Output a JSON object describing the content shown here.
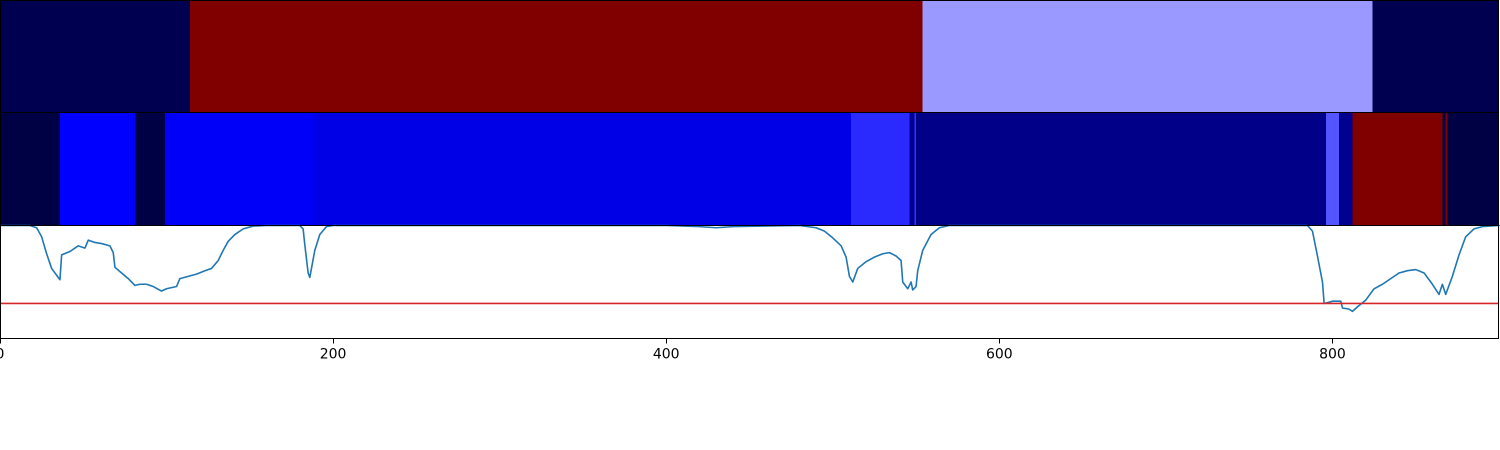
{
  "chart_data": {
    "type": "heatmap",
    "x_range": [
      0,
      900
    ],
    "x_ticks": [
      {
        "value": 0,
        "label": "0"
      },
      {
        "value": 200,
        "label": "200"
      },
      {
        "value": 400,
        "label": "400"
      },
      {
        "value": 600,
        "label": "600"
      },
      {
        "value": 800,
        "label": "800"
      }
    ],
    "tracks": [
      {
        "name": "",
        "segments": [
          {
            "start": 0,
            "end": 114,
            "color": "#000050"
          },
          {
            "start": 114,
            "end": 554,
            "color": "#800000"
          },
          {
            "start": 554,
            "end": 824,
            "color": "#9999ff"
          },
          {
            "start": 824,
            "end": 900,
            "color": "#000050"
          }
        ]
      },
      {
        "name": "",
        "segments": [
          {
            "start": 0,
            "end": 36,
            "color": "#000044"
          },
          {
            "start": 36,
            "end": 81,
            "color": "#0000ff"
          },
          {
            "start": 81,
            "end": 99,
            "color": "#000044"
          },
          {
            "start": 99,
            "end": 188,
            "color": "#0000f8"
          },
          {
            "start": 188,
            "end": 511,
            "color": "#0000e6"
          },
          {
            "start": 511,
            "end": 546,
            "color": "#2a2aff"
          },
          {
            "start": 546,
            "end": 549,
            "color": "#000090"
          },
          {
            "start": 549,
            "end": 550,
            "color": "#3333ff"
          },
          {
            "start": 550,
            "end": 796,
            "color": "#000088"
          },
          {
            "start": 796,
            "end": 804,
            "color": "#5555ff"
          },
          {
            "start": 804,
            "end": 812,
            "color": "#000090"
          },
          {
            "start": 812,
            "end": 866,
            "color": "#800000"
          },
          {
            "start": 866,
            "end": 868,
            "color": "#000044"
          },
          {
            "start": 868,
            "end": 869,
            "color": "#800000"
          },
          {
            "start": 869,
            "end": 900,
            "color": "#000044"
          }
        ]
      }
    ],
    "line_panel": {
      "ylim": [
        0,
        1
      ],
      "threshold": {
        "value": 0.31,
        "color": "#d62728"
      },
      "line_color": "#1f77b4",
      "points": [
        [
          0,
          1.0
        ],
        [
          18,
          1.0
        ],
        [
          22,
          0.98
        ],
        [
          25,
          0.9
        ],
        [
          28,
          0.75
        ],
        [
          31,
          0.62
        ],
        [
          34,
          0.56
        ],
        [
          36,
          0.52
        ],
        [
          37,
          0.74
        ],
        [
          42,
          0.77
        ],
        [
          47,
          0.82
        ],
        [
          51,
          0.8
        ],
        [
          53,
          0.87
        ],
        [
          57,
          0.85
        ],
        [
          61,
          0.84
        ],
        [
          66,
          0.82
        ],
        [
          68,
          0.76
        ],
        [
          69,
          0.63
        ],
        [
          73,
          0.58
        ],
        [
          77,
          0.53
        ],
        [
          81,
          0.47
        ],
        [
          84,
          0.48
        ],
        [
          88,
          0.48
        ],
        [
          92,
          0.46
        ],
        [
          97,
          0.42
        ],
        [
          100,
          0.44
        ],
        [
          106,
          0.46
        ],
        [
          108,
          0.53
        ],
        [
          113,
          0.55
        ],
        [
          118,
          0.57
        ],
        [
          123,
          0.6
        ],
        [
          127,
          0.62
        ],
        [
          131,
          0.69
        ],
        [
          134,
          0.78
        ],
        [
          137,
          0.86
        ],
        [
          141,
          0.92
        ],
        [
          146,
          0.97
        ],
        [
          152,
          0.995
        ],
        [
          160,
          1.0
        ],
        [
          180,
          1.0
        ],
        [
          182,
          0.97
        ],
        [
          183,
          0.83
        ],
        [
          185,
          0.58
        ],
        [
          186,
          0.54
        ],
        [
          187,
          0.62
        ],
        [
          189,
          0.78
        ],
        [
          192,
          0.92
        ],
        [
          196,
          0.99
        ],
        [
          200,
          1.0
        ],
        [
          400,
          1.0
        ],
        [
          420,
          0.99
        ],
        [
          430,
          0.98
        ],
        [
          440,
          0.99
        ],
        [
          480,
          1.0
        ],
        [
          490,
          0.98
        ],
        [
          495,
          0.95
        ],
        [
          500,
          0.89
        ],
        [
          505,
          0.82
        ],
        [
          508,
          0.72
        ],
        [
          510,
          0.55
        ],
        [
          512,
          0.5
        ],
        [
          515,
          0.62
        ],
        [
          520,
          0.68
        ],
        [
          525,
          0.72
        ],
        [
          530,
          0.75
        ],
        [
          534,
          0.76
        ],
        [
          538,
          0.73
        ],
        [
          541,
          0.69
        ],
        [
          542,
          0.5
        ],
        [
          545,
          0.44
        ],
        [
          547,
          0.5
        ],
        [
          548,
          0.43
        ],
        [
          550,
          0.46
        ],
        [
          551,
          0.6
        ],
        [
          554,
          0.78
        ],
        [
          559,
          0.92
        ],
        [
          564,
          0.98
        ],
        [
          570,
          1.0
        ],
        [
          785,
          1.0
        ],
        [
          788,
          0.95
        ],
        [
          791,
          0.73
        ],
        [
          794,
          0.5
        ],
        [
          795,
          0.31
        ],
        [
          800,
          0.33
        ],
        [
          805,
          0.33
        ],
        [
          806,
          0.27
        ],
        [
          810,
          0.26
        ],
        [
          812,
          0.24
        ],
        [
          815,
          0.28
        ],
        [
          820,
          0.34
        ],
        [
          825,
          0.44
        ],
        [
          830,
          0.48
        ],
        [
          835,
          0.53
        ],
        [
          840,
          0.58
        ],
        [
          845,
          0.6
        ],
        [
          850,
          0.61
        ],
        [
          855,
          0.58
        ],
        [
          860,
          0.48
        ],
        [
          864,
          0.39
        ],
        [
          866,
          0.48
        ],
        [
          868,
          0.39
        ],
        [
          872,
          0.55
        ],
        [
          876,
          0.74
        ],
        [
          880,
          0.9
        ],
        [
          885,
          0.97
        ],
        [
          890,
          0.99
        ],
        [
          900,
          1.0
        ]
      ]
    }
  }
}
